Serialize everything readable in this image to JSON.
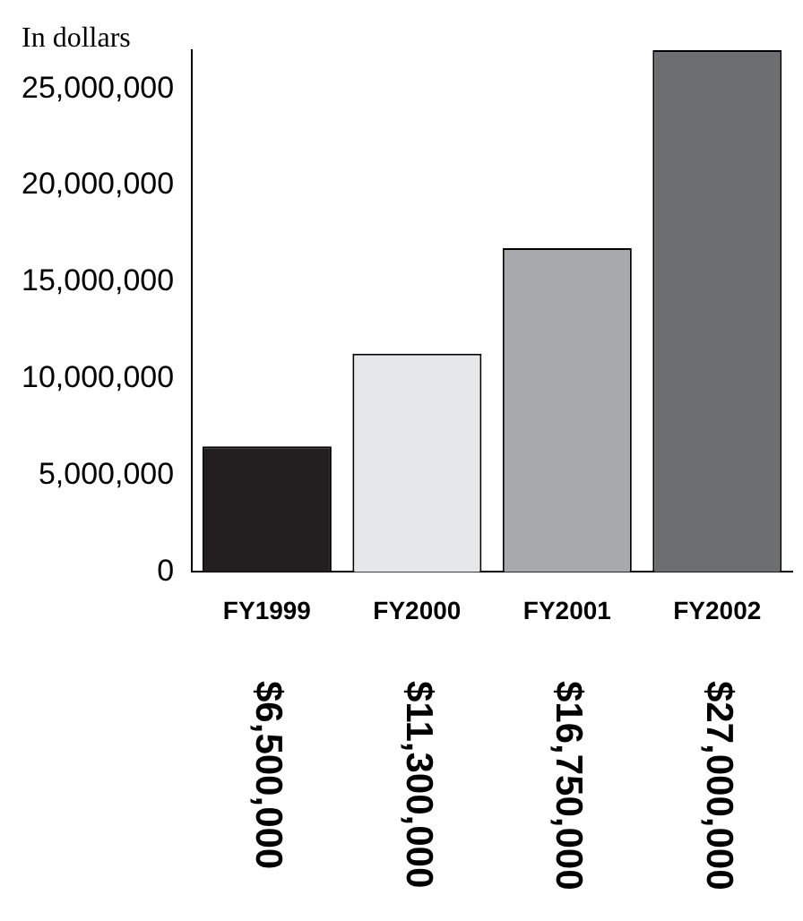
{
  "chart_data": {
    "type": "bar",
    "ylabel": "In dollars",
    "categories": [
      "FY1999",
      "FY2000",
      "FY2001",
      "FY2002"
    ],
    "values": [
      6500000,
      11300000,
      16750000,
      27000000
    ],
    "colors": [
      "#231f20",
      "#e6e7e8",
      "#a7a9ac",
      "#6d6e71"
    ],
    "value_labels": [
      "$6,500,000",
      "$11,300,000",
      "$16,750,000",
      "$27,000,000"
    ],
    "ylim": [
      0,
      27000000
    ],
    "yticks": [
      0,
      {
        "value": 5000000,
        "label": "5,000,000"
      },
      {
        "value": 10000000,
        "label": "10,000,000"
      },
      {
        "value": 15000000,
        "label": "15,000,000"
      },
      {
        "value": 20000000,
        "label": "20,000,000"
      },
      {
        "value": 25000000,
        "label": "25,000,000"
      }
    ],
    "grid": false,
    "legend": false
  }
}
